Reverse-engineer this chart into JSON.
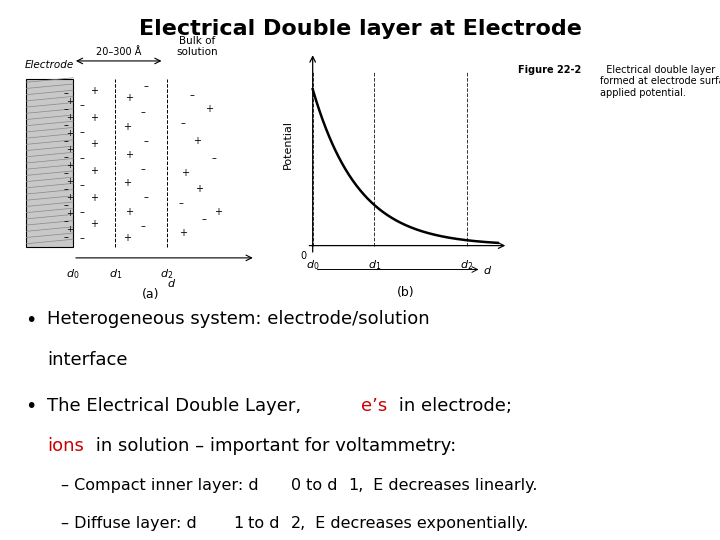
{
  "title": "Electrical Double layer at Electrode",
  "title_fontsize": 16,
  "title_fontweight": "bold",
  "bg_color": "#ffffff",
  "text_color": "#000000",
  "red_color": "#cc0000",
  "bullet_fontsize": 13,
  "sub_fontsize": 11.5,
  "fig_caption": "Figure 22-2   Electrical double layer\nformed at electrode surface as a result of an\napplied potential.",
  "bullet1_line1": "Heterogeneous system: electrode/solution",
  "bullet1_line2": "interface",
  "bullet2_prefix": "The Electrical Double Layer, ",
  "bullet2_red": "e’s",
  "bullet2_mid": " in electrode;",
  "bullet2_ions": "ions",
  "bullet2_suffix": " in solution – important for voltammetry:",
  "sub1_text": "– Compact inner layer: d",
  "sub1_sub0": "0",
  "sub1_mid": " to d",
  "sub1_sub1": "1,",
  "sub1_end": " E decreases linearly.",
  "sub2_text": "– Diffuse layer: d",
  "sub2_sub1": "1",
  "sub2_mid": " to d",
  "sub2_sub2": "2,",
  "sub2_end": " E decreases exponentially."
}
